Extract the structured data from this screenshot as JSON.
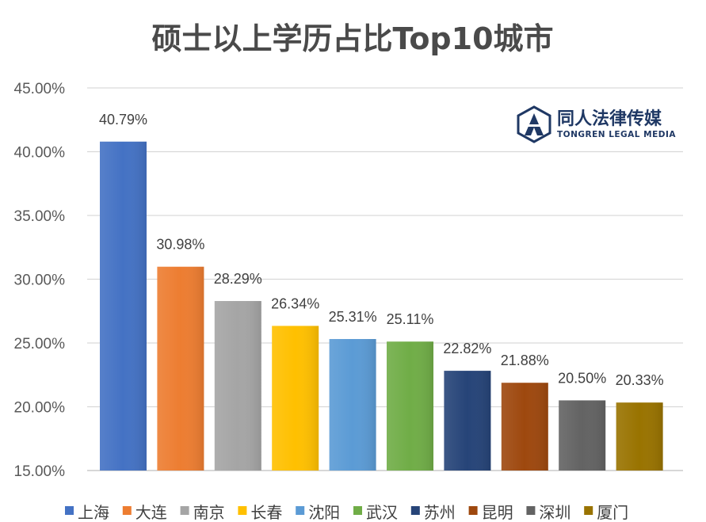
{
  "chart_data": {
    "type": "bar",
    "title": "硕士以上学历占比Top10城市",
    "categories": [
      "上海",
      "大连",
      "南京",
      "长春",
      "沈阳",
      "武汉",
      "苏州",
      "昆明",
      "深圳",
      "厦门"
    ],
    "values": [
      40.79,
      30.98,
      28.29,
      26.34,
      25.31,
      25.11,
      22.82,
      21.88,
      20.5,
      20.33
    ],
    "data_labels": [
      "40.79%",
      "30.98%",
      "28.29%",
      "26.34%",
      "25.31%",
      "25.11%",
      "22.82%",
      "21.88%",
      "20.50%",
      "20.33%"
    ],
    "colors": [
      "#4472c4",
      "#ed7d31",
      "#a5a5a5",
      "#ffc000",
      "#5b9bd5",
      "#70ad47",
      "#264478",
      "#9e480e",
      "#636363",
      "#997300"
    ],
    "ylim": [
      15,
      45
    ],
    "yticks": [
      15,
      20,
      25,
      30,
      35,
      40,
      45
    ],
    "ytick_labels": [
      "15.00%",
      "20.00%",
      "25.00%",
      "30.00%",
      "35.00%",
      "40.00%",
      "45.00%"
    ],
    "grid": true,
    "legend_position": "bottom",
    "xlabel": "",
    "ylabel": ""
  },
  "watermark": {
    "name_cn": "同人法律传媒",
    "name_en": "TONGREN LEGAL MEDIA"
  }
}
